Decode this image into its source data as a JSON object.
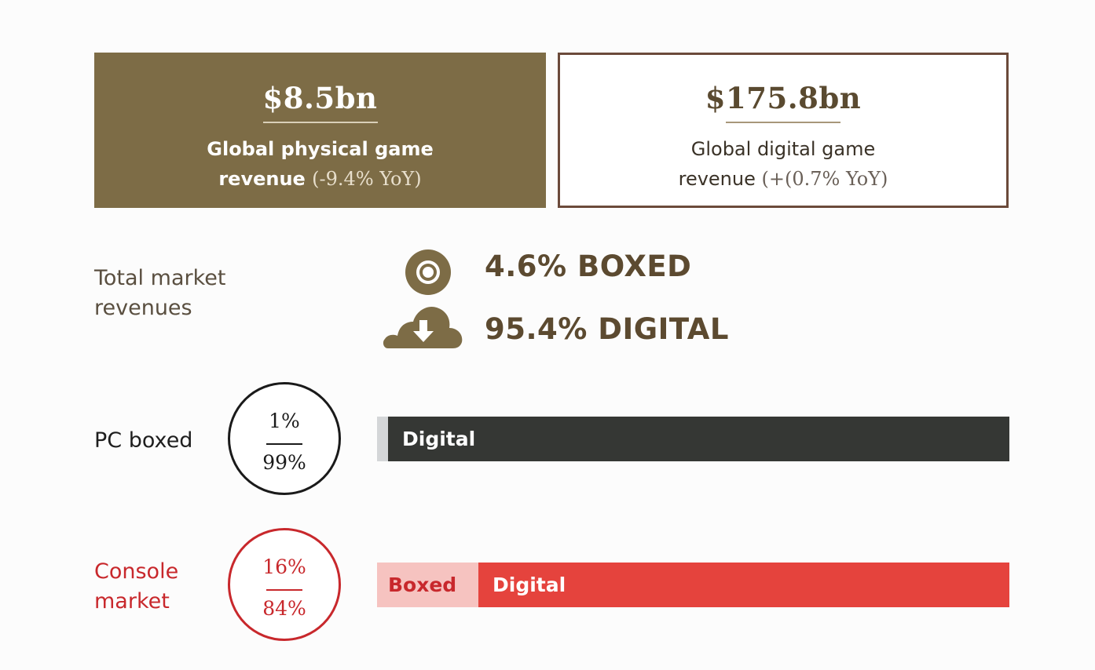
{
  "cards": {
    "physical": {
      "value": "$8.5bn",
      "label_line1": "Global physical game",
      "label_word": "revenue",
      "yoy": "(-9.4% YoY)"
    },
    "digital": {
      "value": "$175.8bn",
      "label_line1": "Global digital game",
      "label_word": "revenue",
      "yoy": "(+(0.7% YoY)"
    }
  },
  "total_market": {
    "label_line1": "Total market",
    "label_line2": "revenues",
    "boxed_text": "4.6% BOXED",
    "digital_text": "95.4% DIGITAL",
    "boxed_icon": "disc-icon",
    "digital_icon": "cloud-download-icon"
  },
  "chart_data": {
    "type": "bar",
    "orientation": "horizontal",
    "stacked": true,
    "normalized": true,
    "categories": [
      "PC boxed",
      "Console market"
    ],
    "series": [
      {
        "name": "Boxed",
        "values": [
          1,
          16
        ]
      },
      {
        "name": "Digital",
        "values": [
          99,
          84
        ]
      }
    ],
    "ring_labels": [
      {
        "top": "1%",
        "bottom": "99%"
      },
      {
        "top": "16%",
        "bottom": "84%"
      }
    ],
    "console_label_line1": "Console",
    "console_label_line2": "market",
    "pc_segment_labels": [
      "",
      "Digital"
    ],
    "console_segment_labels": [
      "Boxed",
      "Digital"
    ]
  },
  "colors": {
    "physical_card": "#7d6c46",
    "digital_border": "#6b4a3a",
    "pc_boxed": "#d4d6d8",
    "pc_digital": "#353734",
    "console_boxed": "#f6c3c0",
    "console_digital": "#e5433d",
    "console_accent": "#c8282c"
  }
}
